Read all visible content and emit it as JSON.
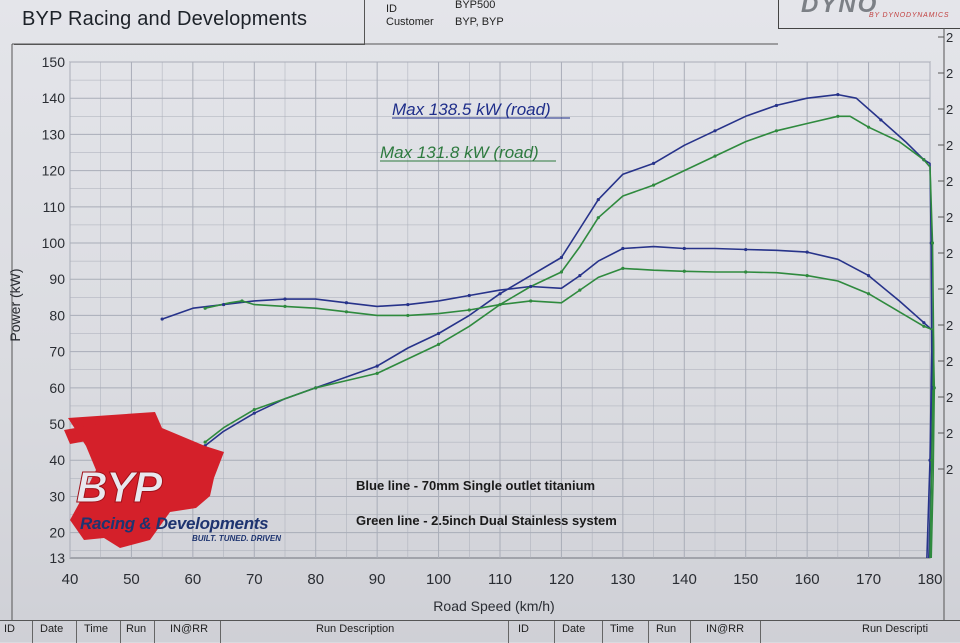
{
  "header": {
    "title": "BYP Racing and Developments",
    "id_label": "ID",
    "id_value": "BYP500",
    "customer_label": "Customer",
    "customer_value": "BYP, BYP",
    "brand_main": "DYNO",
    "brand_sub": "BY DYNODYNAMICS"
  },
  "logo": {
    "letters": "BYP",
    "text": "Racing & Developments",
    "slogan": "BUILT. TUNED. DRIVEN"
  },
  "footer": {
    "cells": [
      "ID",
      "Date",
      "Time",
      "Run",
      "IN@RR",
      "Run Description",
      "ID",
      "Date",
      "Time",
      "Run",
      "IN@RR",
      "Run Descripti"
    ]
  },
  "colors": {
    "blue": "#27338a",
    "green": "#2f8a3e",
    "grid": "#a9adb8"
  },
  "chart_data": {
    "type": "line",
    "xlabel": "Road Speed (km/h)",
    "ylabel": "Power (kW)",
    "xlim": [
      40,
      180
    ],
    "ylim": [
      13,
      150
    ],
    "x_ticks": [
      40,
      50,
      60,
      70,
      80,
      90,
      100,
      110,
      120,
      130,
      140,
      150,
      160,
      170,
      180
    ],
    "y_ticks": [
      13,
      20,
      30,
      40,
      50,
      60,
      70,
      80,
      90,
      100,
      110,
      120,
      130,
      140,
      150
    ],
    "right_axis_ticks": [
      "2",
      "2",
      "2",
      "2",
      "2",
      "2",
      "2",
      "2",
      "2",
      "2",
      "2",
      "2",
      "2"
    ],
    "grid": true,
    "annotations": [
      {
        "text": "Max 138.5 kW (road)",
        "color": "blue"
      },
      {
        "text": "Max 131.8 kW (road)",
        "color": "green"
      }
    ],
    "notes": [
      "Blue line - 70mm Single outlet titanium",
      "Green line - 2.5inch Dual Stainless system"
    ],
    "series": [
      {
        "name": "Blue line - 70mm Single outlet titanium",
        "color": "blue",
        "points": [
          [
            62,
            44
          ],
          [
            65,
            48
          ],
          [
            70,
            53
          ],
          [
            75,
            57
          ],
          [
            80,
            60
          ],
          [
            85,
            63
          ],
          [
            90,
            66
          ],
          [
            95,
            71
          ],
          [
            100,
            75
          ],
          [
            105,
            80
          ],
          [
            110,
            86
          ],
          [
            115,
            91
          ],
          [
            120,
            96
          ],
          [
            123,
            104
          ],
          [
            126,
            112
          ],
          [
            130,
            119
          ],
          [
            135,
            122
          ],
          [
            140,
            127
          ],
          [
            145,
            131
          ],
          [
            150,
            135
          ],
          [
            155,
            138
          ],
          [
            160,
            140
          ],
          [
            165,
            141
          ],
          [
            168,
            140
          ],
          [
            172,
            134
          ],
          [
            176,
            128
          ],
          [
            179,
            123
          ],
          [
            180,
            122
          ],
          [
            180.2,
            100
          ],
          [
            180.3,
            70
          ],
          [
            180,
            40
          ],
          [
            179.5,
            13
          ]
        ]
      },
      {
        "name": "Blue line - 70mm Single outlet titanium (torque)",
        "color": "blue",
        "points": [
          [
            55,
            79
          ],
          [
            60,
            82
          ],
          [
            65,
            83
          ],
          [
            70,
            84
          ],
          [
            75,
            84.5
          ],
          [
            80,
            84.5
          ],
          [
            85,
            83.5
          ],
          [
            90,
            82.5
          ],
          [
            95,
            83
          ],
          [
            100,
            84
          ],
          [
            105,
            85.5
          ],
          [
            110,
            87
          ],
          [
            115,
            88
          ],
          [
            120,
            87.5
          ],
          [
            123,
            91
          ],
          [
            126,
            95
          ],
          [
            130,
            98.5
          ],
          [
            135,
            99
          ],
          [
            140,
            98.5
          ],
          [
            145,
            98.5
          ],
          [
            150,
            98.2
          ],
          [
            155,
            98
          ],
          [
            160,
            97.5
          ],
          [
            165,
            95.5
          ],
          [
            170,
            91
          ],
          [
            175,
            84
          ],
          [
            179,
            78
          ],
          [
            180.3,
            76
          ],
          [
            180.4,
            60
          ],
          [
            180.2,
            35
          ],
          [
            179.8,
            13
          ]
        ]
      },
      {
        "name": "Green line - 2.5inch Dual Stainless system",
        "color": "green",
        "points": [
          [
            62,
            45
          ],
          [
            65,
            49
          ],
          [
            70,
            54
          ],
          [
            75,
            57
          ],
          [
            80,
            60
          ],
          [
            85,
            62
          ],
          [
            90,
            64
          ],
          [
            95,
            68
          ],
          [
            100,
            72
          ],
          [
            105,
            77
          ],
          [
            110,
            83
          ],
          [
            115,
            88
          ],
          [
            120,
            92
          ],
          [
            123,
            99
          ],
          [
            126,
            107
          ],
          [
            130,
            113
          ],
          [
            135,
            116
          ],
          [
            140,
            120
          ],
          [
            145,
            124
          ],
          [
            150,
            128
          ],
          [
            155,
            131
          ],
          [
            160,
            133
          ],
          [
            165,
            135
          ],
          [
            167,
            135
          ],
          [
            170,
            132
          ],
          [
            175,
            128
          ],
          [
            179,
            123
          ],
          [
            180,
            121
          ],
          [
            180.4,
            100
          ],
          [
            180.6,
            70
          ],
          [
            180.3,
            40
          ],
          [
            180,
            13
          ]
        ]
      },
      {
        "name": "Green line - 2.5inch Dual Stainless system (torque)",
        "color": "green",
        "points": [
          [
            62,
            82
          ],
          [
            66,
            83.5
          ],
          [
            68,
            84
          ],
          [
            70,
            83
          ],
          [
            75,
            82.5
          ],
          [
            80,
            82
          ],
          [
            85,
            81
          ],
          [
            90,
            80
          ],
          [
            95,
            80
          ],
          [
            100,
            80.5
          ],
          [
            105,
            81.5
          ],
          [
            110,
            83
          ],
          [
            115,
            84
          ],
          [
            120,
            83.5
          ],
          [
            123,
            87
          ],
          [
            126,
            90.5
          ],
          [
            130,
            93
          ],
          [
            135,
            92.5
          ],
          [
            140,
            92.2
          ],
          [
            145,
            92
          ],
          [
            150,
            92
          ],
          [
            155,
            91.8
          ],
          [
            160,
            91
          ],
          [
            165,
            89.5
          ],
          [
            170,
            86
          ],
          [
            175,
            81
          ],
          [
            179,
            77
          ],
          [
            180.5,
            76
          ],
          [
            180.7,
            60
          ],
          [
            180.5,
            35
          ],
          [
            180.2,
            13
          ]
        ]
      }
    ]
  }
}
